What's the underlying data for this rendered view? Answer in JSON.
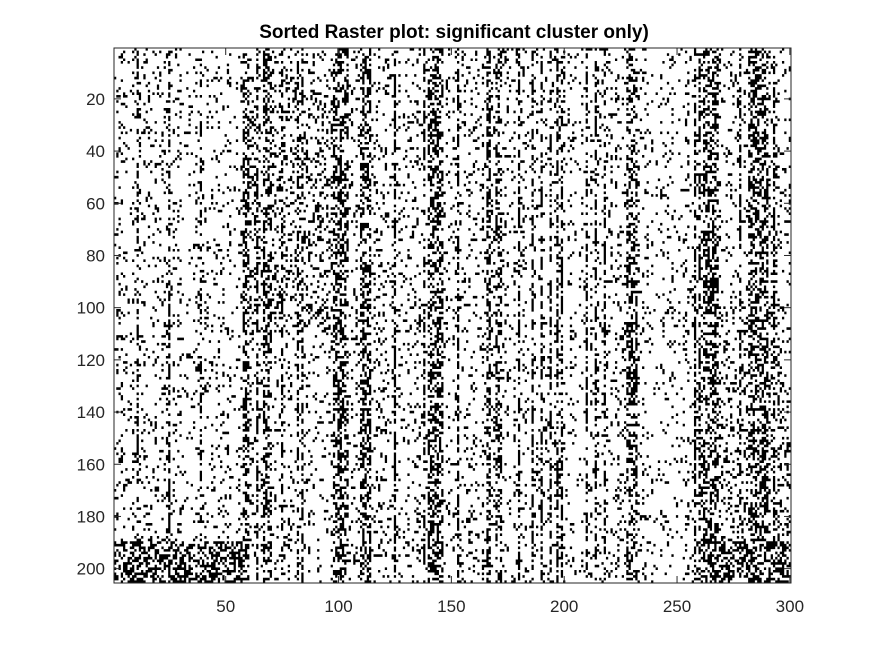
{
  "chart_data": {
    "type": "heatmap",
    "subtype": "binary-raster",
    "title": "Sorted Raster plot: significant cluster only)",
    "xlabel": "",
    "ylabel": "",
    "n_columns": 300,
    "n_rows": 205,
    "xlim": [
      0.5,
      300.5
    ],
    "ylim": [
      0.5,
      205.5
    ],
    "y_direction": "reverse",
    "x_ticks": [
      50,
      100,
      150,
      200,
      250,
      300
    ],
    "x_tick_labels": [
      "50",
      "100",
      "150",
      "200",
      "250",
      "300"
    ],
    "y_ticks": [
      20,
      40,
      60,
      80,
      100,
      120,
      140,
      160,
      180,
      200
    ],
    "y_tick_labels": [
      "20",
      "40",
      "60",
      "80",
      "100",
      "120",
      "140",
      "160",
      "180",
      "200"
    ],
    "grid": false,
    "legend": "none",
    "colors": {
      "event": "#000000",
      "background": "#ffffff",
      "axis": "#262626"
    },
    "dense_column_bands": [
      [
        58,
        60
      ],
      [
        67,
        70
      ],
      [
        98,
        104
      ],
      [
        110,
        114
      ],
      [
        140,
        146
      ],
      [
        170,
        172
      ],
      [
        228,
        232
      ],
      [
        262,
        268
      ],
      [
        282,
        290
      ]
    ],
    "dense_row_blocks": [
      {
        "rows": [
          190,
          205
        ],
        "columns": [
          1,
          58
        ]
      },
      {
        "rows": [
          190,
          205
        ],
        "columns": [
          262,
          300
        ]
      },
      {
        "rows": [
          10,
          110
        ],
        "columns": [
          60,
          100
        ]
      },
      {
        "rows": [
          100,
          205
        ],
        "columns": [
          260,
          300
        ]
      }
    ],
    "approx_event_density": 0.15
  }
}
